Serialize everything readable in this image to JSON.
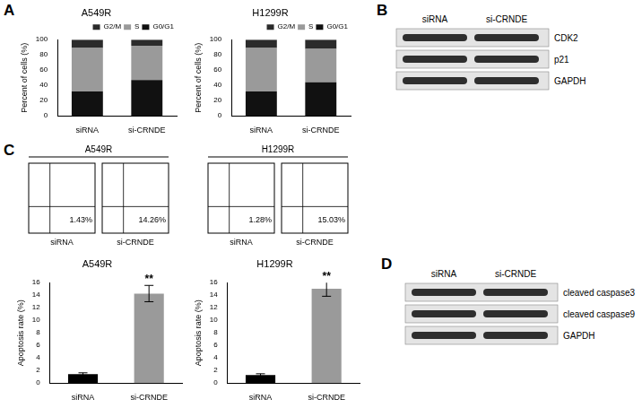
{
  "panel_labels": [
    "A",
    "B",
    "C",
    "D"
  ],
  "chart_data": [
    {
      "type": "bar",
      "title": "A549R",
      "y_label": "Percent of cells (%)",
      "categories": [
        "siRNA",
        "si-CRNDE"
      ],
      "stacked": true,
      "legend": "top-right",
      "grid": false,
      "ylim": [
        0,
        100
      ],
      "yticks": [
        0,
        20,
        40,
        60,
        80,
        100
      ],
      "series": [
        {
          "name": "G0/G1",
          "color": "#111111",
          "values": [
            32,
            47
          ]
        },
        {
          "name": "S",
          "color": "#9a9a9a",
          "values": [
            57,
            45
          ]
        },
        {
          "name": "G2/M",
          "color": "#2b2b2b",
          "values": [
            11,
            8
          ]
        }
      ]
    },
    {
      "type": "bar",
      "title": "H1299R",
      "y_label": "Percent of cells (%)",
      "categories": [
        "siRNA",
        "si-CRNDE"
      ],
      "stacked": true,
      "legend": "top-right",
      "grid": false,
      "ylim": [
        0,
        100
      ],
      "yticks": [
        0,
        20,
        40,
        60,
        80,
        100
      ],
      "series": [
        {
          "name": "G0/G1",
          "color": "#111111",
          "values": [
            32,
            44
          ]
        },
        {
          "name": "S",
          "color": "#9a9a9a",
          "values": [
            57,
            44
          ]
        },
        {
          "name": "G2/M",
          "color": "#2b2b2b",
          "values": [
            11,
            12
          ]
        }
      ]
    },
    {
      "type": "bar",
      "title": "A549R",
      "y_label": "Apoptosis rate (%)",
      "categories": [
        "siRNA",
        "si-CRNDE"
      ],
      "grid": false,
      "ylim": [
        0,
        16
      ],
      "yticks": [
        0,
        2,
        4,
        6,
        8,
        10,
        12,
        14,
        16
      ],
      "values": [
        1.43,
        14.26
      ],
      "errors": [
        0.2,
        1.3
      ],
      "colors": [
        "#000000",
        "#9a9a9a"
      ],
      "annotations": [
        {
          "category": "si-CRNDE",
          "text": "**"
        }
      ]
    },
    {
      "type": "bar",
      "title": "H1299R",
      "y_label": "Apoptosis rate (%)",
      "categories": [
        "siRNA",
        "si-CRNDE"
      ],
      "grid": false,
      "ylim": [
        0,
        16
      ],
      "yticks": [
        0,
        2,
        4,
        6,
        8,
        10,
        12,
        14,
        16
      ],
      "values": [
        1.28,
        15.03
      ],
      "errors": [
        0.2,
        1.2
      ],
      "colors": [
        "#000000",
        "#9a9a9a"
      ],
      "annotations": [
        {
          "category": "si-CRNDE",
          "text": "**"
        }
      ]
    }
  ],
  "flow": [
    {
      "title": "A549R",
      "plots": [
        {
          "label": "siRNA",
          "percent": "1.43%"
        },
        {
          "label": "si-CRNDE",
          "percent": "14.26%"
        }
      ]
    },
    {
      "title": "H1299R",
      "plots": [
        {
          "label": "siRNA",
          "percent": "1.28%"
        },
        {
          "label": "si-CRNDE",
          "percent": "15.03%"
        }
      ]
    }
  ],
  "blots": [
    {
      "lanes": [
        "siRNA",
        "si-CRNDE"
      ],
      "bands": [
        "CDK2",
        "p21",
        "GAPDH"
      ]
    },
    {
      "lanes": [
        "siRNA",
        "si-CRNDE"
      ],
      "bands": [
        "cleaved caspase3",
        "cleaved caspase9",
        "GAPDH"
      ]
    }
  ]
}
